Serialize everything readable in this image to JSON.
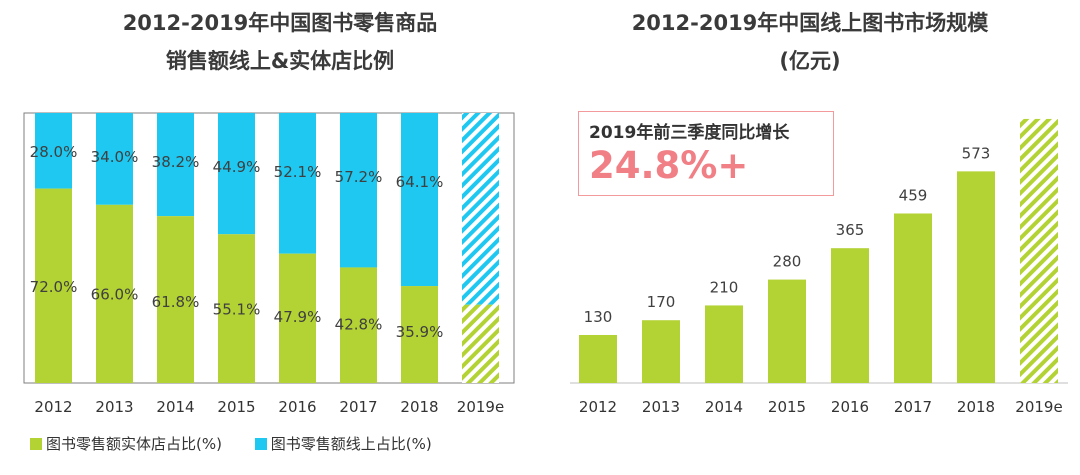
{
  "left_title_line1": "2012-2019年中国图书零售商品",
  "left_title_line2": "销售额线上&实体店比例",
  "right_title_line1": "2012-2019年中国线上图书市场规模",
  "right_title_line2": "(亿元)",
  "growth_label": "2019年前三季度同比增长",
  "growth_value": "24.8%+",
  "colors": {
    "green": "#b3d234",
    "blue": "#1ec8f0",
    "pink": "#f07f86",
    "frame": "#7f7f7f"
  },
  "chart_data": [
    {
      "type": "bar",
      "stacked": "percent",
      "title": "2012-2019年中国图书零售商品销售额线上&实体店比例",
      "categories": [
        "2012",
        "2013",
        "2014",
        "2015",
        "2016",
        "2017",
        "2018",
        "2019e"
      ],
      "series": [
        {
          "name": "图书零售额实体店占比(%)",
          "color": "#b3d234",
          "values": [
            72.0,
            66.0,
            61.8,
            55.1,
            47.9,
            42.8,
            35.9,
            29.0
          ],
          "labels": [
            "72.0%",
            "66.0%",
            "61.8%",
            "55.1%",
            "47.9%",
            "42.8%",
            "35.9%",
            ""
          ]
        },
        {
          "name": "图书零售额线上占比(%)",
          "color": "#1ec8f0",
          "values": [
            28.0,
            34.0,
            38.2,
            44.9,
            52.1,
            57.2,
            64.1,
            71.0
          ],
          "labels": [
            "28.0%",
            "34.0%",
            "38.2%",
            "44.9%",
            "52.1%",
            "57.2%",
            "64.1%",
            ""
          ]
        }
      ],
      "estimated_category": "2019e",
      "estimated_style": "hatched",
      "ylim": [
        0,
        100
      ],
      "legend_position": "bottom-left",
      "grid": false
    },
    {
      "type": "bar",
      "title": "2012-2019年中国线上图书市场规模(亿元)",
      "categories": [
        "2012",
        "2013",
        "2014",
        "2015",
        "2016",
        "2017",
        "2018",
        "2019e"
      ],
      "values": [
        130,
        170,
        210,
        280,
        365,
        459,
        573,
        715
      ],
      "labels": [
        "130",
        "170",
        "210",
        "280",
        "365",
        "459",
        "573",
        ""
      ],
      "color": "#b3d234",
      "estimated_category": "2019e",
      "estimated_style": "hatched",
      "ylim": [
        0,
        750
      ],
      "grid": false
    }
  ]
}
